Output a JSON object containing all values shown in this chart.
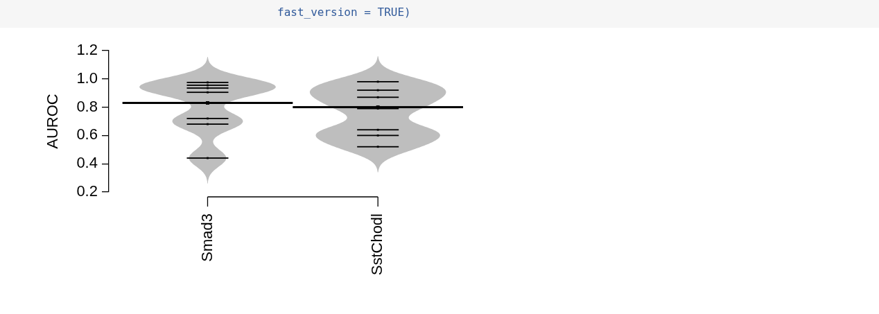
{
  "chart_data": {
    "type": "scatter",
    "annotations": [
      "fast_version = TRUE)"
    ],
    "ylabel": "AUROC",
    "categories": [
      "Smad3",
      "SstChodl"
    ],
    "ylim": [
      0.2,
      1.2
    ],
    "yticks": [
      0.2,
      0.4,
      0.6,
      0.8,
      {
        "value": 1,
        "label": "1.0"
      },
      1.2
    ],
    "grid": false,
    "series": [
      {
        "color": "#000000",
        "x": [
          "Smad3",
          "Smad3",
          "Smad3",
          "Smad3",
          "Smad3",
          "Smad3",
          "Smad3",
          "SstChodl",
          "SstChodl",
          "SstChodl",
          "SstChodl",
          "SstChodl",
          "SstChodl",
          "SstChodl"
        ],
        "values": [
          0.975,
          0.955,
          0.935,
          0.905,
          0.72,
          0.68,
          0.44,
          0.98,
          0.92,
          0.87,
          0.79,
          0.64,
          0.6,
          0.52
        ]
      },
      {
        "color": "#000000",
        "x": [
          "Smad3",
          "SstChodl"
        ],
        "values": [
          0.83,
          0.8
        ]
      }
    ]
  }
}
